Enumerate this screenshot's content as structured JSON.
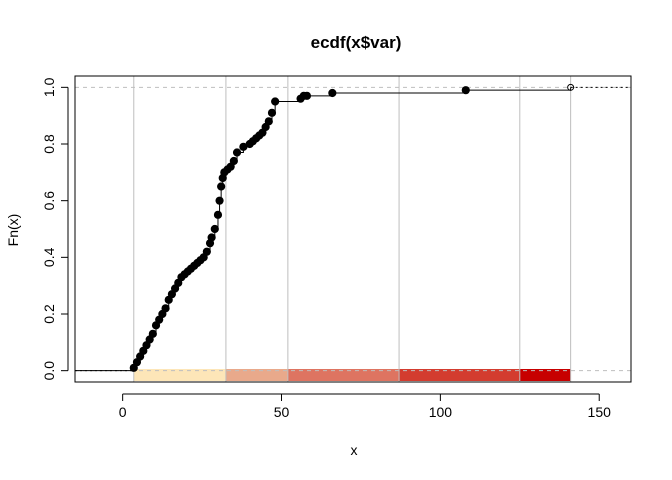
{
  "chart_data": {
    "type": "step",
    "title": "ecdf(x$var)",
    "xlabel": "x",
    "ylabel": "Fn(x)",
    "xlim": [
      -15,
      160
    ],
    "ylim": [
      -0.04,
      1.04
    ],
    "xticks": [
      0,
      50,
      100,
      150
    ],
    "xtick_labels": [
      "0",
      "50",
      "100",
      "150"
    ],
    "yticks": [
      0,
      0.2,
      0.4,
      0.6,
      0.8,
      1.0
    ],
    "ytick_labels": [
      "0.0",
      "0.2",
      "0.4",
      "0.6",
      "0.8",
      "1.0"
    ],
    "x": [
      3.5,
      4.5,
      5.5,
      6.5,
      7.5,
      8.5,
      9.5,
      10.5,
      11.5,
      12.5,
      13.5,
      14.5,
      15.5,
      16.5,
      17.5,
      18.5,
      19.5,
      20.5,
      21.5,
      22.5,
      23.5,
      24.5,
      25.5,
      26.5,
      27.5,
      28,
      29,
      30,
      30.5,
      31,
      31.5,
      32,
      33,
      34,
      35,
      36,
      38,
      40,
      41,
      42,
      43,
      44,
      45,
      46,
      47,
      48,
      56,
      57,
      58,
      66,
      108,
      141
    ],
    "y": [
      0.01,
      0.03,
      0.05,
      0.07,
      0.09,
      0.11,
      0.13,
      0.16,
      0.18,
      0.2,
      0.22,
      0.25,
      0.27,
      0.29,
      0.31,
      0.33,
      0.34,
      0.35,
      0.36,
      0.37,
      0.38,
      0.39,
      0.4,
      0.42,
      0.45,
      0.47,
      0.5,
      0.55,
      0.6,
      0.65,
      0.68,
      0.7,
      0.71,
      0.72,
      0.74,
      0.77,
      0.79,
      0.8,
      0.81,
      0.82,
      0.83,
      0.84,
      0.86,
      0.88,
      0.91,
      0.95,
      0.96,
      0.97,
      0.97,
      0.98,
      0.99,
      1.0
    ],
    "vlines": [
      3.5,
      32.5,
      52,
      87,
      125,
      141
    ],
    "hlines_dashed": [
      0,
      1
    ],
    "bands": [
      {
        "from": 3.5,
        "to": 32.5,
        "color": "#FDE6B8"
      },
      {
        "from": 32.5,
        "to": 52,
        "color": "#E9A98B"
      },
      {
        "from": 52,
        "to": 87,
        "color": "#DE7461"
      },
      {
        "from": 87,
        "to": 125,
        "color": "#D33C2F"
      },
      {
        "from": 125,
        "to": 141,
        "color": "#C70000"
      }
    ],
    "colors": {
      "points": "#000000",
      "grid": "#BEBEBE",
      "dashed": "#BEBEBE",
      "frame": "#000000"
    }
  }
}
